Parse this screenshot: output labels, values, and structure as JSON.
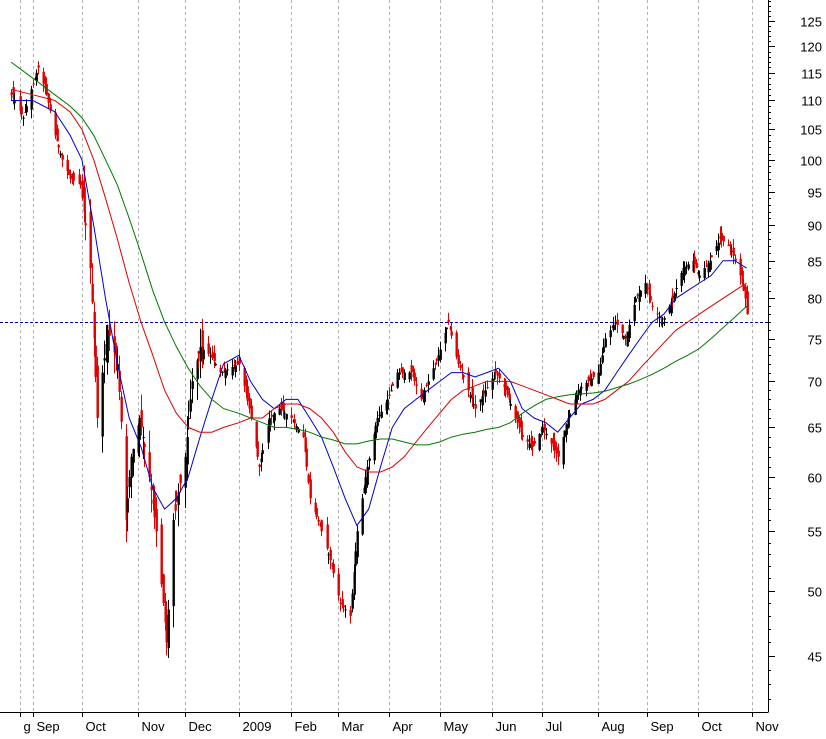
{
  "chart_data": {
    "type": "candlestick",
    "title": "",
    "xlabel": "",
    "ylabel": "",
    "y_scale": "log",
    "ylim": [
      40,
      130
    ],
    "y_ticks": [
      45,
      50,
      55,
      60,
      65,
      70,
      75,
      80,
      85,
      90,
      95,
      100,
      105,
      110,
      115,
      120,
      125
    ],
    "x_ticks": [
      {
        "label": "g",
        "date": "2008-08-25"
      },
      {
        "label": "Sep",
        "date": "2008-09-02"
      },
      {
        "label": "Oct",
        "date": "2008-10-01"
      },
      {
        "label": "Nov",
        "date": "2008-11-03"
      },
      {
        "label": "Dec",
        "date": "2008-12-01"
      },
      {
        "label": "2009",
        "date": "2009-01-02"
      },
      {
        "label": "Feb",
        "date": "2009-02-02"
      },
      {
        "label": "Mar",
        "date": "2009-03-02"
      },
      {
        "label": "Apr",
        "date": "2009-04-01"
      },
      {
        "label": "May",
        "date": "2009-05-01"
      },
      {
        "label": "Jun",
        "date": "2009-06-01"
      },
      {
        "label": "Jul",
        "date": "2009-07-01"
      },
      {
        "label": "Aug",
        "date": "2009-08-03"
      },
      {
        "label": "Sep",
        "date": "2009-09-01"
      },
      {
        "label": "Oct",
        "date": "2009-10-01"
      },
      {
        "label": "Nov",
        "date": "2009-11-02"
      }
    ],
    "grid": {
      "vertical": true,
      "horizontal": false
    },
    "reference_line": {
      "value": 77
    },
    "colors": {
      "up_candle": "#000000",
      "down_candle": "#e00000",
      "ma_short": "#0000cc",
      "ma_mid": "#dd0000",
      "ma_long": "#007700",
      "reference_line": "#00008b",
      "grid": "#b0b0b0"
    },
    "close_path": [
      [
        "2008-08-20",
        111
      ],
      [
        "2008-08-27",
        107
      ],
      [
        "2008-09-02",
        113
      ],
      [
        "2008-09-05",
        116
      ],
      [
        "2008-09-10",
        111
      ],
      [
        "2008-09-15",
        104
      ],
      [
        "2008-09-19",
        100
      ],
      [
        "2008-09-24",
        97
      ],
      [
        "2008-09-30",
        96
      ],
      [
        "2008-10-06",
        84
      ],
      [
        "2008-10-10",
        66
      ],
      [
        "2008-10-16",
        76
      ],
      [
        "2008-10-22",
        72
      ],
      [
        "2008-10-27",
        56
      ],
      [
        "2008-10-30",
        62
      ],
      [
        "2008-11-04",
        66
      ],
      [
        "2008-11-10",
        60
      ],
      [
        "2008-11-14",
        55
      ],
      [
        "2008-11-20",
        46
      ],
      [
        "2008-11-24",
        56
      ],
      [
        "2008-12-01",
        62
      ],
      [
        "2008-12-05",
        70
      ],
      [
        "2008-12-10",
        74
      ],
      [
        "2008-12-16",
        73
      ],
      [
        "2008-12-22",
        71
      ],
      [
        "2009-01-02",
        72
      ],
      [
        "2009-01-08",
        67
      ],
      [
        "2009-01-14",
        61
      ],
      [
        "2009-01-20",
        66
      ],
      [
        "2009-01-26",
        67
      ],
      [
        "2009-02-02",
        66
      ],
      [
        "2009-02-09",
        64
      ],
      [
        "2009-02-13",
        58
      ],
      [
        "2009-02-20",
        55
      ],
      [
        "2009-02-26",
        52
      ],
      [
        "2009-03-03",
        49
      ],
      [
        "2009-03-09",
        48
      ],
      [
        "2009-03-13",
        55
      ],
      [
        "2009-03-19",
        61
      ],
      [
        "2009-03-25",
        66
      ],
      [
        "2009-03-31",
        68
      ],
      [
        "2009-04-06",
        71
      ],
      [
        "2009-04-14",
        71
      ],
      [
        "2009-04-20",
        68
      ],
      [
        "2009-04-24",
        70
      ],
      [
        "2009-04-30",
        73
      ],
      [
        "2009-05-06",
        77
      ],
      [
        "2009-05-12",
        72
      ],
      [
        "2009-05-18",
        69
      ],
      [
        "2009-05-22",
        67
      ],
      [
        "2009-05-28",
        69
      ],
      [
        "2009-06-03",
        71
      ],
      [
        "2009-06-09",
        69
      ],
      [
        "2009-06-15",
        66
      ],
      [
        "2009-06-19",
        64
      ],
      [
        "2009-06-25",
        63
      ],
      [
        "2009-07-01",
        65
      ],
      [
        "2009-07-07",
        63
      ],
      [
        "2009-07-10",
        62
      ],
      [
        "2009-07-16",
        66
      ],
      [
        "2009-07-22",
        69
      ],
      [
        "2009-07-28",
        70
      ],
      [
        "2009-08-03",
        71
      ],
      [
        "2009-08-07",
        75
      ],
      [
        "2009-08-13",
        77
      ],
      [
        "2009-08-19",
        75
      ],
      [
        "2009-08-25",
        80
      ],
      [
        "2009-08-31",
        82
      ],
      [
        "2009-09-04",
        79
      ],
      [
        "2009-09-10",
        77
      ],
      [
        "2009-09-16",
        80
      ],
      [
        "2009-09-22",
        84
      ],
      [
        "2009-09-28",
        85
      ],
      [
        "2009-10-02",
        83
      ],
      [
        "2009-10-08",
        85
      ],
      [
        "2009-10-14",
        88
      ],
      [
        "2009-10-20",
        87
      ],
      [
        "2009-10-26",
        83
      ],
      [
        "2009-10-29",
        80
      ],
      [
        "2009-10-30",
        78
      ]
    ],
    "series": [
      {
        "type": "line",
        "role": "ma_short",
        "points": [
          [
            "2008-08-20",
            110
          ],
          [
            "2008-09-02",
            110
          ],
          [
            "2008-09-15",
            108
          ],
          [
            "2008-09-24",
            104
          ],
          [
            "2008-10-01",
            100
          ],
          [
            "2008-10-08",
            90
          ],
          [
            "2008-10-15",
            80
          ],
          [
            "2008-10-22",
            72
          ],
          [
            "2008-10-29",
            66
          ],
          [
            "2008-11-05",
            63
          ],
          [
            "2008-11-12",
            59
          ],
          [
            "2008-11-19",
            57
          ],
          [
            "2008-11-26",
            58
          ],
          [
            "2008-12-03",
            60
          ],
          [
            "2008-12-10",
            64
          ],
          [
            "2008-12-17",
            68
          ],
          [
            "2008-12-24",
            72
          ],
          [
            "2009-01-02",
            73
          ],
          [
            "2009-01-09",
            70
          ],
          [
            "2009-01-16",
            68
          ],
          [
            "2009-01-23",
            67
          ],
          [
            "2009-01-30",
            68
          ],
          [
            "2009-02-06",
            68
          ],
          [
            "2009-02-13",
            66
          ],
          [
            "2009-02-20",
            64
          ],
          [
            "2009-02-27",
            61
          ],
          [
            "2009-03-06",
            58
          ],
          [
            "2009-03-13",
            55.5
          ],
          [
            "2009-03-20",
            57
          ],
          [
            "2009-03-27",
            61
          ],
          [
            "2009-04-03",
            65
          ],
          [
            "2009-04-10",
            67
          ],
          [
            "2009-04-17",
            68
          ],
          [
            "2009-04-24",
            69
          ],
          [
            "2009-05-01",
            70
          ],
          [
            "2009-05-08",
            71
          ],
          [
            "2009-05-15",
            71
          ],
          [
            "2009-05-22",
            70.5
          ],
          [
            "2009-05-29",
            71
          ],
          [
            "2009-06-05",
            71.5
          ],
          [
            "2009-06-12",
            70
          ],
          [
            "2009-06-19",
            67
          ],
          [
            "2009-06-26",
            66
          ],
          [
            "2009-07-03",
            65.5
          ],
          [
            "2009-07-10",
            64.5
          ],
          [
            "2009-07-17",
            66
          ],
          [
            "2009-07-24",
            67.5
          ],
          [
            "2009-07-31",
            68
          ],
          [
            "2009-08-07",
            69
          ],
          [
            "2009-08-14",
            71
          ],
          [
            "2009-08-21",
            73
          ],
          [
            "2009-08-28",
            75
          ],
          [
            "2009-09-04",
            77
          ],
          [
            "2009-09-11",
            78
          ],
          [
            "2009-09-18",
            80
          ],
          [
            "2009-09-25",
            81
          ],
          [
            "2009-10-02",
            82
          ],
          [
            "2009-10-09",
            83
          ],
          [
            "2009-10-16",
            85
          ],
          [
            "2009-10-23",
            85
          ],
          [
            "2009-10-30",
            84
          ]
        ]
      },
      {
        "type": "line",
        "role": "ma_mid",
        "points": [
          [
            "2008-08-20",
            112
          ],
          [
            "2008-09-02",
            111
          ],
          [
            "2008-09-15",
            110
          ],
          [
            "2008-09-24",
            108
          ],
          [
            "2008-10-01",
            105
          ],
          [
            "2008-10-08",
            100
          ],
          [
            "2008-10-15",
            94
          ],
          [
            "2008-10-22",
            88
          ],
          [
            "2008-10-29",
            82
          ],
          [
            "2008-11-05",
            77
          ],
          [
            "2008-11-12",
            73
          ],
          [
            "2008-11-19",
            69
          ],
          [
            "2008-11-26",
            66.5
          ],
          [
            "2008-12-03",
            65
          ],
          [
            "2008-12-10",
            64.5
          ],
          [
            "2008-12-17",
            64.5
          ],
          [
            "2008-12-24",
            65
          ],
          [
            "2009-01-02",
            65.5
          ],
          [
            "2009-01-09",
            66
          ],
          [
            "2009-01-16",
            66
          ],
          [
            "2009-01-23",
            67
          ],
          [
            "2009-01-30",
            67.5
          ],
          [
            "2009-02-06",
            67.5
          ],
          [
            "2009-02-13",
            67
          ],
          [
            "2009-02-20",
            66
          ],
          [
            "2009-02-27",
            64.5
          ],
          [
            "2009-03-06",
            62.5
          ],
          [
            "2009-03-13",
            61
          ],
          [
            "2009-03-20",
            60.5
          ],
          [
            "2009-03-27",
            60.5
          ],
          [
            "2009-04-03",
            61
          ],
          [
            "2009-04-10",
            62
          ],
          [
            "2009-04-17",
            63.5
          ],
          [
            "2009-04-24",
            65
          ],
          [
            "2009-05-01",
            66.5
          ],
          [
            "2009-05-08",
            68
          ],
          [
            "2009-05-15",
            69
          ],
          [
            "2009-05-22",
            69.5
          ],
          [
            "2009-05-29",
            70
          ],
          [
            "2009-06-05",
            70
          ],
          [
            "2009-06-12",
            70
          ],
          [
            "2009-06-19",
            69.5
          ],
          [
            "2009-06-26",
            69
          ],
          [
            "2009-07-03",
            68.5
          ],
          [
            "2009-07-10",
            68
          ],
          [
            "2009-07-17",
            67.5
          ],
          [
            "2009-07-24",
            67.5
          ],
          [
            "2009-07-31",
            67.5
          ],
          [
            "2009-08-07",
            68
          ],
          [
            "2009-08-14",
            69
          ],
          [
            "2009-08-21",
            70
          ],
          [
            "2009-08-28",
            71.5
          ],
          [
            "2009-09-04",
            73
          ],
          [
            "2009-09-11",
            74.5
          ],
          [
            "2009-09-18",
            76
          ],
          [
            "2009-09-25",
            77
          ],
          [
            "2009-10-02",
            78
          ],
          [
            "2009-10-09",
            79
          ],
          [
            "2009-10-16",
            80
          ],
          [
            "2009-10-23",
            81
          ],
          [
            "2009-10-30",
            82
          ]
        ]
      },
      {
        "type": "line",
        "role": "ma_long",
        "points": [
          [
            "2008-08-20",
            117
          ],
          [
            "2008-09-02",
            114
          ],
          [
            "2008-09-15",
            111
          ],
          [
            "2008-09-24",
            109
          ],
          [
            "2008-10-01",
            107
          ],
          [
            "2008-10-08",
            104
          ],
          [
            "2008-10-15",
            100
          ],
          [
            "2008-10-22",
            96
          ],
          [
            "2008-10-29",
            91
          ],
          [
            "2008-11-05",
            86
          ],
          [
            "2008-11-12",
            81
          ],
          [
            "2008-11-19",
            77
          ],
          [
            "2008-11-26",
            74
          ],
          [
            "2008-12-03",
            71.5
          ],
          [
            "2008-12-10",
            69.5
          ],
          [
            "2008-12-17",
            68
          ],
          [
            "2008-12-24",
            67
          ],
          [
            "2009-01-02",
            66.5
          ],
          [
            "2009-01-09",
            66
          ],
          [
            "2009-01-16",
            65.5
          ],
          [
            "2009-01-23",
            65
          ],
          [
            "2009-01-30",
            65
          ],
          [
            "2009-02-06",
            64.8
          ],
          [
            "2009-02-13",
            64.5
          ],
          [
            "2009-02-20",
            64
          ],
          [
            "2009-02-27",
            63.7
          ],
          [
            "2009-03-06",
            63.3
          ],
          [
            "2009-03-13",
            63.3
          ],
          [
            "2009-03-20",
            63.6
          ],
          [
            "2009-03-27",
            63.8
          ],
          [
            "2009-04-03",
            63.8
          ],
          [
            "2009-04-10",
            63.5
          ],
          [
            "2009-04-17",
            63.2
          ],
          [
            "2009-04-24",
            63.2
          ],
          [
            "2009-05-01",
            63.5
          ],
          [
            "2009-05-08",
            64
          ],
          [
            "2009-05-15",
            64.3
          ],
          [
            "2009-05-22",
            64.5
          ],
          [
            "2009-05-29",
            64.8
          ],
          [
            "2009-06-05",
            65
          ],
          [
            "2009-06-12",
            65.5
          ],
          [
            "2009-06-19",
            66.5
          ],
          [
            "2009-06-26",
            67.3
          ],
          [
            "2009-07-03",
            68
          ],
          [
            "2009-07-10",
            68.3
          ],
          [
            "2009-07-17",
            68.5
          ],
          [
            "2009-07-24",
            68.6
          ],
          [
            "2009-07-31",
            68.7
          ],
          [
            "2009-08-07",
            68.9
          ],
          [
            "2009-08-14",
            69.3
          ],
          [
            "2009-08-21",
            69.7
          ],
          [
            "2009-08-28",
            70.2
          ],
          [
            "2009-09-04",
            70.8
          ],
          [
            "2009-09-11",
            71.5
          ],
          [
            "2009-09-18",
            72.3
          ],
          [
            "2009-09-25",
            73
          ],
          [
            "2009-10-02",
            73.8
          ],
          [
            "2009-10-09",
            75
          ],
          [
            "2009-10-16",
            76.3
          ],
          [
            "2009-10-23",
            77.6
          ],
          [
            "2009-10-30",
            79
          ]
        ]
      }
    ]
  }
}
